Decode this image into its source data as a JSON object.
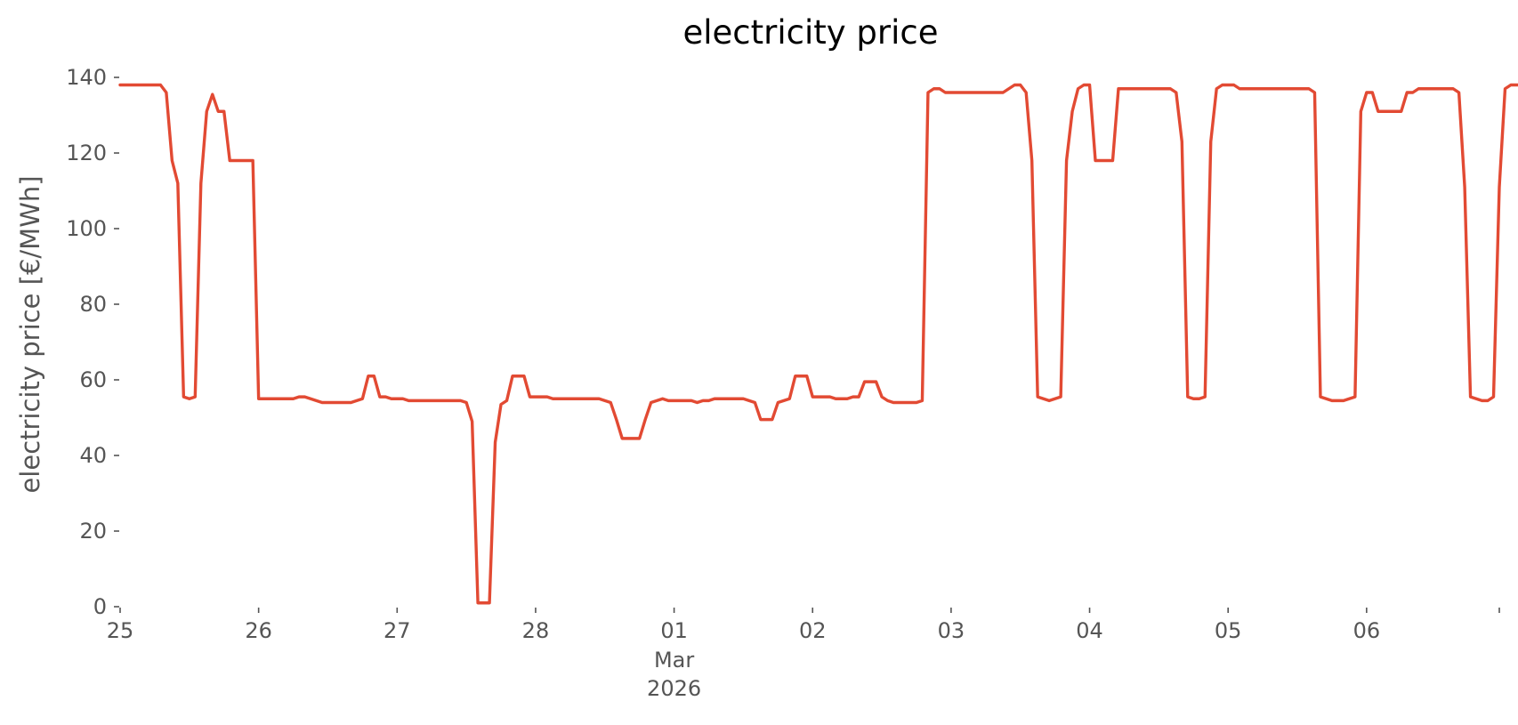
{
  "chart_data": {
    "type": "line",
    "title": "electricity price",
    "ylabel": "electricity price [€/MWh]",
    "xlabel": "",
    "ylim": [
      0,
      140
    ],
    "xlim": [
      "2026-02-25T00:00",
      "2026-03-06T23:00"
    ],
    "grid": false,
    "line_color": "#E24A33",
    "y_ticks": [
      "0",
      "20",
      "40",
      "60",
      "80",
      "100",
      "120",
      "140"
    ],
    "x_ticks": [
      {
        "label": "25",
        "x": "2026-02-25T00:00"
      },
      {
        "label": "26",
        "x": "2026-02-26T00:00"
      },
      {
        "label": "27",
        "x": "2026-02-27T00:00"
      },
      {
        "label": "28",
        "x": "2026-02-28T00:00"
      },
      {
        "label": "01",
        "x": "2026-03-01T00:00",
        "sub": [
          "Mar",
          "2026"
        ]
      },
      {
        "label": "02",
        "x": "2026-03-02T00:00"
      },
      {
        "label": "03",
        "x": "2026-03-03T00:00"
      },
      {
        "label": "04",
        "x": "2026-03-04T00:00"
      },
      {
        "label": "05",
        "x": "2026-03-05T00:00"
      },
      {
        "label": "06",
        "x": "2026-03-06T00:00"
      }
    ],
    "series": [
      {
        "x_start": "2026-02-25T00:00",
        "x_step_hours": 1,
        "values": [
          138,
          138,
          138,
          138,
          138,
          138,
          138,
          138,
          136,
          118,
          112,
          55.5,
          55,
          55.5,
          112,
          131,
          135.5,
          131,
          131,
          118,
          118,
          118,
          118,
          118,
          55,
          55,
          55,
          55,
          55,
          55,
          55,
          55.5,
          55.5,
          55,
          54.5,
          54,
          54,
          54,
          54,
          54,
          54,
          54.5,
          55,
          61,
          61,
          55.5,
          55.5,
          55,
          55,
          55,
          54.5,
          54.5,
          54.5,
          54.5,
          54.5,
          54.5,
          54.5,
          54.5,
          54.5,
          54.5,
          54,
          49,
          1,
          1,
          1,
          43.5,
          53.5,
          54.5,
          61,
          61,
          61,
          55.5,
          55.5,
          55.5,
          55.5,
          55,
          55,
          55,
          55,
          55,
          55,
          55,
          55,
          55,
          54.5,
          54,
          49.5,
          44.5,
          44.5,
          44.5,
          44.5,
          49.5,
          54,
          54.5,
          55,
          54.5,
          54.5,
          54.5,
          54.5,
          54.5,
          54,
          54.5,
          54.5,
          55,
          55,
          55,
          55,
          55,
          55,
          54.5,
          54,
          49.5,
          49.5,
          49.5,
          54,
          54.5,
          55,
          61,
          61,
          61,
          55.5,
          55.5,
          55.5,
          55.5,
          55,
          55,
          55,
          55.5,
          55.5,
          59.5,
          59.5,
          59.5,
          55.5,
          54.5,
          54,
          54,
          54,
          54,
          54,
          54.5,
          136,
          137,
          137,
          136,
          136,
          136,
          136,
          136,
          136,
          136,
          136,
          136,
          136,
          136,
          137,
          138,
          138,
          136,
          118,
          55.5,
          55,
          54.5,
          55,
          55.5,
          118,
          131,
          137,
          138,
          138,
          118,
          118,
          118,
          118,
          137,
          137,
          137,
          137,
          137,
          137,
          137,
          137,
          137,
          137,
          136,
          123,
          55.5,
          55,
          55,
          55.5,
          123,
          137,
          138,
          138,
          138,
          137,
          137,
          137,
          137,
          137,
          137,
          137,
          137,
          137,
          137,
          137,
          137,
          137,
          136,
          55.5,
          55,
          54.5,
          54.5,
          54.5,
          55,
          55.5,
          131,
          136,
          136,
          131,
          131,
          131,
          131,
          131,
          136,
          136,
          137,
          137,
          137,
          137,
          137,
          137,
          137,
          136,
          111,
          55.5,
          55,
          54.5,
          54.5,
          55.5,
          111,
          137,
          138,
          138,
          138,
          138,
          138,
          138,
          138
        ]
      }
    ]
  }
}
